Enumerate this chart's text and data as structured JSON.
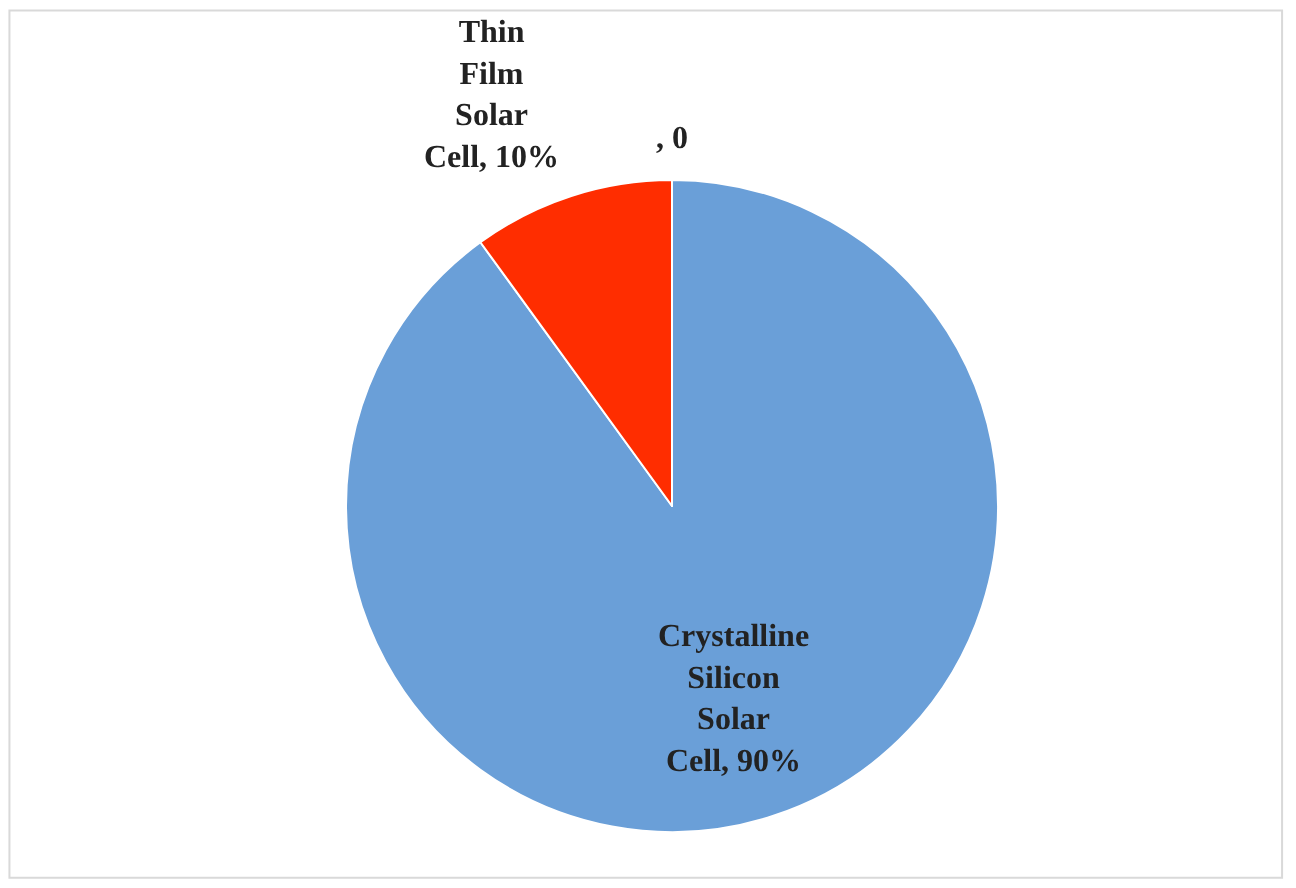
{
  "chart_data": {
    "type": "pie",
    "categories": [
      "Crystalline Silicon Solar Cell",
      "Thin Film Solar Cell",
      null
    ],
    "values": [
      90,
      10,
      0
    ],
    "value_labels": [
      ", 90%",
      ", 10%",
      ", 0"
    ],
    "colors": [
      "#6a9fd8",
      "#ff2d00",
      "#a5a5a5"
    ],
    "legend": false
  }
}
